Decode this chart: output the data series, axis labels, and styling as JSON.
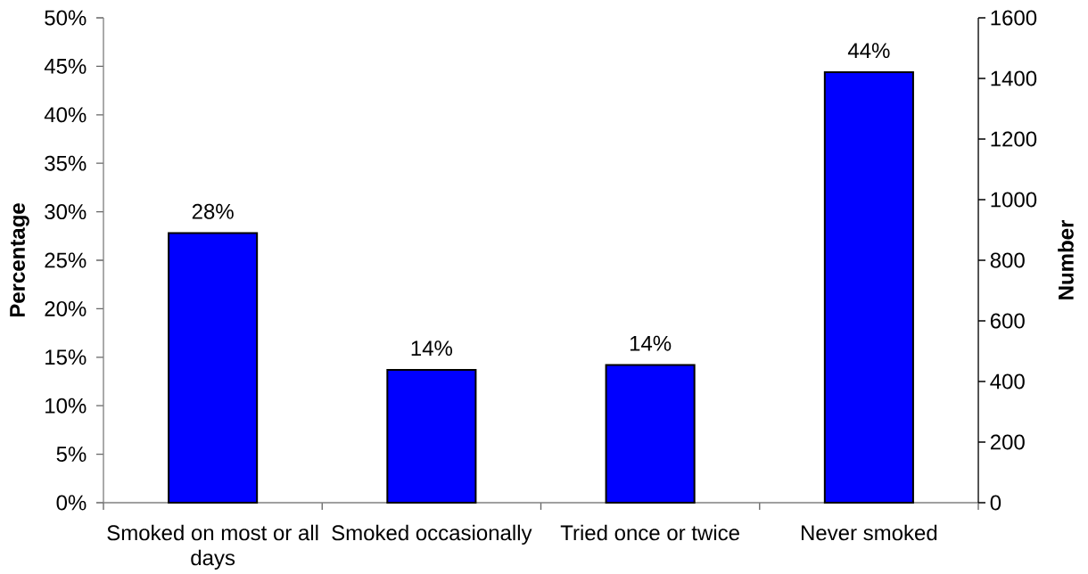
{
  "chart_data": {
    "type": "bar",
    "categories": [
      "Smoked on most or all days",
      "Smoked occasionally",
      "Tried once or twice",
      "Never smoked"
    ],
    "values": [
      27.8,
      13.7,
      14.2,
      44.4
    ],
    "color": "#0000ff",
    "value_labels": [
      "28%",
      "14%",
      "14%",
      "44%"
    ],
    "ylabel": "Percentage",
    "y2label": "Number",
    "ylim": [
      0,
      50
    ],
    "yticks": [
      {
        "value": 0,
        "label": "0%"
      },
      {
        "value": 5,
        "label": "5%"
      },
      {
        "value": 10,
        "label": "10%"
      },
      {
        "value": 15,
        "label": "15%"
      },
      {
        "value": 20,
        "label": "20%"
      },
      {
        "value": 25,
        "label": "25%"
      },
      {
        "value": 30,
        "label": "30%"
      },
      {
        "value": 35,
        "label": "35%"
      },
      {
        "value": 40,
        "label": "40%"
      },
      {
        "value": 45,
        "label": "45%"
      },
      {
        "value": 50,
        "label": "50%"
      }
    ],
    "y2lim": [
      0,
      1600
    ],
    "y2ticks": [
      0,
      200,
      400,
      600,
      800,
      1000,
      1200,
      1400,
      1600
    ]
  }
}
